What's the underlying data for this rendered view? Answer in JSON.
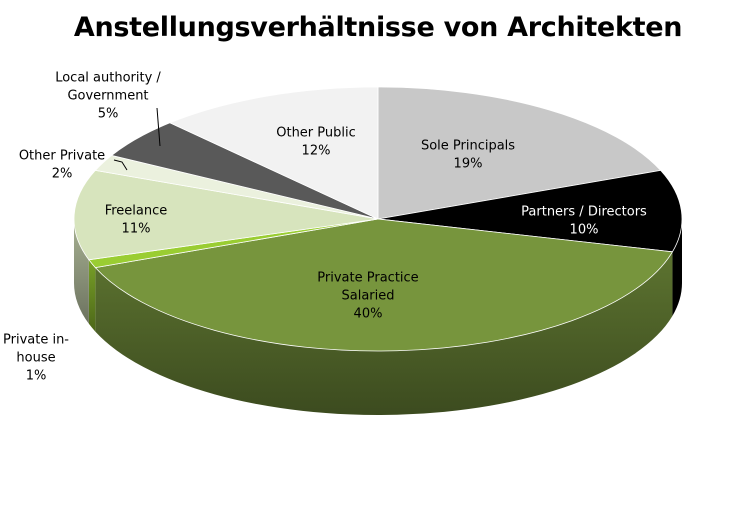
{
  "chart_data": {
    "type": "pie",
    "title": "Anstellungsverhältnisse von Architekten",
    "slices": [
      {
        "label": [
          "Sole Principals"
        ],
        "value": 19,
        "value_label": "19%",
        "color": "#c8c8c8",
        "label_color": "#000000"
      },
      {
        "label": [
          "Partners / Directors"
        ],
        "value": 10,
        "value_label": "10%",
        "color": "#000000",
        "label_color": "#ffffff"
      },
      {
        "label": [
          "Private Practice",
          "Salaried"
        ],
        "value": 40,
        "value_label": "40%",
        "color": "#77953d",
        "label_color": "#000000"
      },
      {
        "label": [
          "Private in-",
          "house"
        ],
        "value": 1,
        "value_label": "1%",
        "color": "#9acd32",
        "label_color": "#000000"
      },
      {
        "label": [
          "Freelance"
        ],
        "value": 11,
        "value_label": "11%",
        "color": "#d7e4bd",
        "label_color": "#000000"
      },
      {
        "label": [
          "Other Private"
        ],
        "value": 2,
        "value_label": "2%",
        "color": "#ebf1de",
        "label_color": "#000000"
      },
      {
        "label": [
          "Local authority /",
          "Government"
        ],
        "value": 5,
        "value_label": "5%",
        "color": "#595959",
        "label_color": "#000000"
      },
      {
        "label": [
          "Other Public"
        ],
        "value": 12,
        "value_label": "12%",
        "color": "#f2f2f2",
        "label_color": "#000000"
      }
    ],
    "view": "3d-perspective",
    "legend": "none"
  }
}
